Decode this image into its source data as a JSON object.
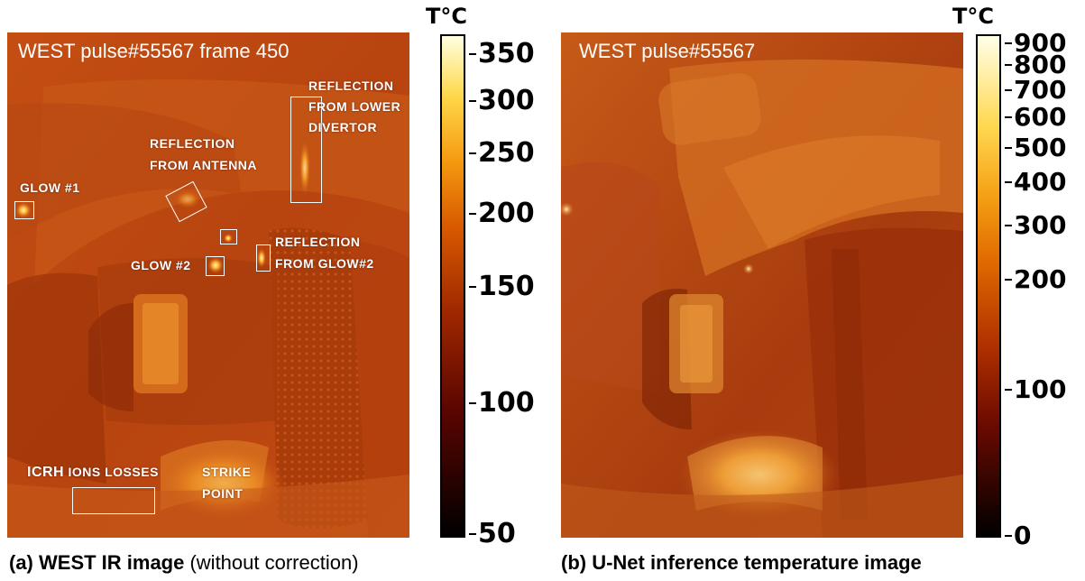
{
  "panel_a": {
    "title": "WEST pulse#55567 frame 450",
    "caption_bold": "(a) WEST IR image",
    "caption_normal": " (without correction)",
    "labels": {
      "reflection_lower_1": "REFLECTION",
      "reflection_lower_2": "FROM LOWER",
      "reflection_lower_3": "DIVERTOR",
      "reflection_antenna_1": "REFLECTION",
      "reflection_antenna_2": "FROM ANTENNA",
      "glow1": "GLOW #1",
      "glow2": "GLOW #2",
      "reflection_glow2_1": "REFLECTION",
      "reflection_glow2_2": "FROM GLOW#2",
      "icrh_bold": "ICRH",
      "icrh_rest": " IONS LOSSES",
      "strike_1": "STRIKE",
      "strike_2": "POINT"
    },
    "colorbar": {
      "title": "T°C",
      "ticks": [
        "350",
        "300",
        "250",
        "200",
        "150",
        "100",
        "50"
      ]
    }
  },
  "panel_b": {
    "title": "WEST pulse#55567",
    "caption": "(b) U-Net inference temperature image",
    "colorbar": {
      "title": "T°C",
      "ticks": [
        "900",
        "800",
        "700",
        "600",
        "500",
        "400",
        "300",
        "200",
        "100",
        "0"
      ]
    }
  },
  "colors": {
    "image_base": "#c24a10",
    "colormap": [
      "#000000",
      "#5a0500",
      "#a02800",
      "#d85a00",
      "#f59a10",
      "#ffd84a",
      "#ffffe0"
    ]
  }
}
